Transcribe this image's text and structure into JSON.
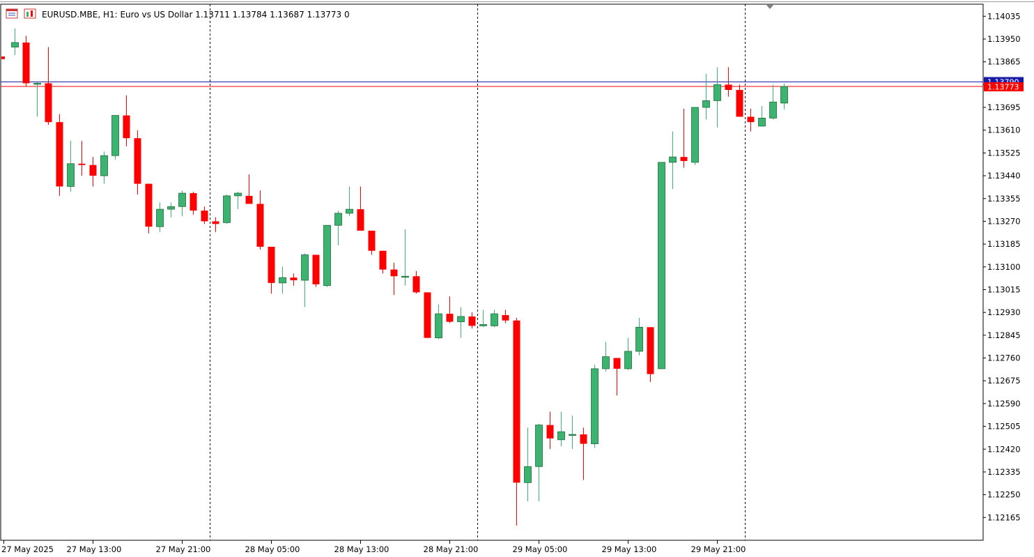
{
  "header": {
    "symbol_title": "EURUSD.MBE, H1:  Euro vs US Dollar  1.13711 1.13784 1.13687 1.13773  0",
    "icon_names": [
      "chart-window-icon",
      "market-watch-icon"
    ]
  },
  "colors": {
    "bull_body": "#3cb371",
    "bear_body": "#ff0000",
    "bid_line": "#ff0000",
    "ask_line": "#1a1aa6",
    "grid_separator": "#000000"
  },
  "price_markers": {
    "ask": "1.13790",
    "bid": "1.13773"
  },
  "chart_data": {
    "type": "candlestick",
    "title": "EURUSD.MBE, H1",
    "ylim": [
      1.1208,
      1.1408
    ],
    "y_ticks": [
      "1.14035",
      "1.13950",
      "1.13865",
      "1.13780",
      "1.13695",
      "1.13610",
      "1.13525",
      "1.13440",
      "1.13355",
      "1.13270",
      "1.13185",
      "1.13100",
      "1.13015",
      "1.12930",
      "1.12845",
      "1.12760",
      "1.12675",
      "1.12590",
      "1.12505",
      "1.12420",
      "1.12335",
      "1.12250",
      "1.12165"
    ],
    "x_labels": [
      {
        "text": "27 May 2025",
        "bar": 0
      },
      {
        "text": "27 May 13:00",
        "bar": 8
      },
      {
        "text": "27 May 21:00",
        "bar": 16
      },
      {
        "text": "28 May 05:00",
        "bar": 24
      },
      {
        "text": "28 May 13:00",
        "bar": 32
      },
      {
        "text": "28 May 21:00",
        "bar": 40
      },
      {
        "text": "29 May 05:00",
        "bar": 48
      },
      {
        "text": "29 May 13:00",
        "bar": 56
      },
      {
        "text": "29 May 21:00",
        "bar": 64
      }
    ],
    "day_separators_after_bar": [
      18,
      42,
      66
    ],
    "ohlc": [
      [
        1.1388,
        1.1388,
        1.1388,
        1.1388
      ],
      [
        1.1392,
        1.1399,
        1.1389,
        1.13937
      ],
      [
        1.13937,
        1.13962,
        1.13772,
        1.13785
      ],
      [
        1.13785,
        1.1379,
        1.1366,
        1.13785
      ],
      [
        1.13785,
        1.1392,
        1.1363,
        1.1364
      ],
      [
        1.1364,
        1.1367,
        1.13365,
        1.134
      ],
      [
        1.134,
        1.1357,
        1.1338,
        1.13485
      ],
      [
        1.13485,
        1.1357,
        1.1344,
        1.1348
      ],
      [
        1.1348,
        1.1351,
        1.134,
        1.1344
      ],
      [
        1.1344,
        1.1353,
        1.1341,
        1.13515
      ],
      [
        1.13515,
        1.13665,
        1.135,
        1.13665
      ],
      [
        1.13665,
        1.1374,
        1.1355,
        1.1358
      ],
      [
        1.1358,
        1.1361,
        1.1337,
        1.1341
      ],
      [
        1.1341,
        1.1341,
        1.13225,
        1.1325
      ],
      [
        1.1325,
        1.1334,
        1.1323,
        1.13315
      ],
      [
        1.13315,
        1.1334,
        1.13285,
        1.13325
      ],
      [
        1.13325,
        1.13385,
        1.1329,
        1.13375
      ],
      [
        1.13375,
        1.1338,
        1.13295,
        1.1331
      ],
      [
        1.1331,
        1.13325,
        1.1326,
        1.1327
      ],
      [
        1.1327,
        1.13285,
        1.1323,
        1.1326
      ],
      [
        1.13265,
        1.1337,
        1.1326,
        1.13365
      ],
      [
        1.13365,
        1.1338,
        1.13315,
        1.13375
      ],
      [
        1.13365,
        1.13445,
        1.13345,
        1.13335
      ],
      [
        1.13335,
        1.13385,
        1.13165,
        1.13175
      ],
      [
        1.13175,
        1.13175,
        1.13,
        1.1304
      ],
      [
        1.1304,
        1.131,
        1.13,
        1.1306
      ],
      [
        1.1306,
        1.13075,
        1.1303,
        1.1305
      ],
      [
        1.1305,
        1.1315,
        1.1295,
        1.13145
      ],
      [
        1.13145,
        1.13145,
        1.13025,
        1.13035
      ],
      [
        1.1303,
        1.13255,
        1.13025,
        1.13255
      ],
      [
        1.13255,
        1.1331,
        1.1318,
        1.133
      ],
      [
        1.133,
        1.134,
        1.1329,
        1.13315
      ],
      [
        1.13315,
        1.134,
        1.1324,
        1.13235
      ],
      [
        1.13235,
        1.13235,
        1.13145,
        1.1316
      ],
      [
        1.1316,
        1.1316,
        1.13075,
        1.1309
      ],
      [
        1.1309,
        1.13115,
        1.12995,
        1.13065
      ],
      [
        1.13065,
        1.1324,
        1.1303,
        1.13065
      ],
      [
        1.13065,
        1.13085,
        1.13,
        1.13005
      ],
      [
        1.13005,
        1.13005,
        1.12835,
        1.12835
      ],
      [
        1.12835,
        1.1296,
        1.1283,
        1.12925
      ],
      [
        1.12925,
        1.1299,
        1.1289,
        1.12895
      ],
      [
        1.12895,
        1.1295,
        1.12835,
        1.12915
      ],
      [
        1.12915,
        1.1293,
        1.1287,
        1.1288
      ],
      [
        1.1288,
        1.1294,
        1.12875,
        1.12885
      ],
      [
        1.1288,
        1.1294,
        1.12875,
        1.12925
      ],
      [
        1.1292,
        1.1294,
        1.1289,
        1.129
      ],
      [
        1.129,
        1.1291,
        1.12135,
        1.12295
      ],
      [
        1.12295,
        1.125,
        1.12225,
        1.12355
      ],
      [
        1.12355,
        1.12515,
        1.12225,
        1.1251
      ],
      [
        1.1251,
        1.1256,
        1.1242,
        1.1246
      ],
      [
        1.12455,
        1.1256,
        1.1243,
        1.12485
      ],
      [
        1.12475,
        1.12545,
        1.1242,
        1.12475
      ],
      [
        1.12475,
        1.125,
        1.12305,
        1.1244
      ],
      [
        1.1244,
        1.12735,
        1.12425,
        1.1272
      ],
      [
        1.1272,
        1.1282,
        1.1271,
        1.12765
      ],
      [
        1.1276,
        1.1276,
        1.1262,
        1.1272
      ],
      [
        1.1272,
        1.12835,
        1.12715,
        1.12785
      ],
      [
        1.12785,
        1.1291,
        1.1277,
        1.12875
      ],
      [
        1.12875,
        1.12875,
        1.1267,
        1.127
      ],
      [
        1.1272,
        1.1349,
        1.1272,
        1.1349
      ],
      [
        1.1349,
        1.13605,
        1.1339,
        1.1351
      ],
      [
        1.1351,
        1.1369,
        1.1347,
        1.13495
      ],
      [
        1.1349,
        1.13695,
        1.1348,
        1.13695
      ],
      [
        1.13695,
        1.1382,
        1.1365,
        1.1372
      ],
      [
        1.1372,
        1.13845,
        1.1362,
        1.1378
      ],
      [
        1.1378,
        1.13845,
        1.13735,
        1.1376
      ],
      [
        1.1376,
        1.1378,
        1.1366,
        1.1366
      ],
      [
        1.1366,
        1.1369,
        1.13605,
        1.1364
      ],
      [
        1.13625,
        1.137,
        1.13625,
        1.13655
      ],
      [
        1.13655,
        1.1378,
        1.1365,
        1.13715
      ],
      [
        1.13711,
        1.13784,
        1.13687,
        1.13773
      ]
    ]
  }
}
